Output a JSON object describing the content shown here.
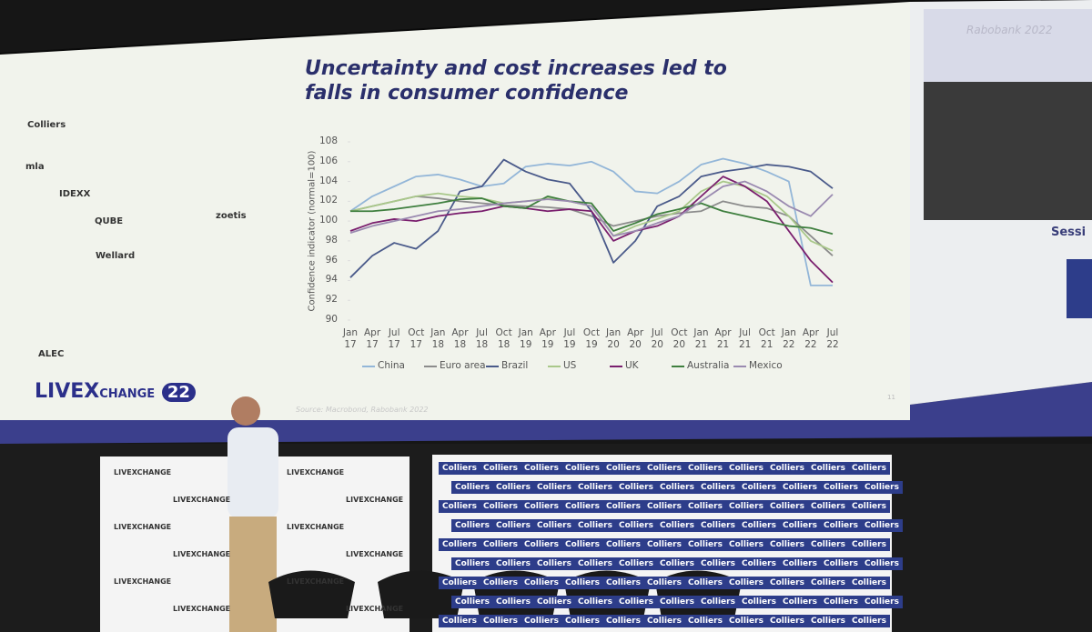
{
  "chart_data": {
    "type": "line",
    "title": "Uncertainty  and cost increases led to falls in consumer confidence",
    "y_label": "Confidence indicator (normal=100)",
    "categories": [
      "Jan 17",
      "Apr 17",
      "Jul 17",
      "Oct 17",
      "Jan 18",
      "Apr 18",
      "Jul 18",
      "Oct 18",
      "Jan 19",
      "Apr 19",
      "Jul 19",
      "Oct 19",
      "Jan 20",
      "Apr 20",
      "Jul 20",
      "Oct 20",
      "Jan 21",
      "Apr 21",
      "Jul 21",
      "Oct 21",
      "Jan 22",
      "Apr 22",
      "Jul 22"
    ],
    "ylim": [
      90,
      108
    ],
    "yticks": [
      90,
      92,
      94,
      96,
      98,
      100,
      102,
      104,
      106,
      108
    ],
    "grid": false,
    "legend": "bottom",
    "series": [
      {
        "name": "China",
        "color": "#93b6d8",
        "values": [
          101,
          102.5,
          103.5,
          104.5,
          104.7,
          104.2,
          103.5,
          103.8,
          105.5,
          105.8,
          105.6,
          106,
          105,
          103,
          102.8,
          104,
          105.7,
          106.3,
          105.8,
          105,
          104,
          93.5,
          93.5
        ]
      },
      {
        "name": "Euro area",
        "color": "#8c8c8c",
        "values": [
          101,
          101.5,
          102,
          102.5,
          102.3,
          102,
          101.8,
          101.6,
          101.5,
          101.4,
          101.2,
          100.5,
          99.5,
          100,
          100.5,
          100.8,
          101,
          102,
          101.5,
          101.3,
          100.5,
          98.5,
          96.5
        ]
      },
      {
        "name": "Brazil",
        "color": "#4a5a8a",
        "values": [
          94.3,
          96.5,
          97.8,
          97.2,
          99,
          103,
          103.5,
          106.2,
          105,
          104.2,
          103.8,
          101,
          95.8,
          98,
          101.5,
          102.5,
          104.5,
          105,
          105.3,
          105.7,
          105.5,
          105,
          103.3
        ]
      },
      {
        "name": "US",
        "color": "#a9c88a",
        "values": [
          101,
          101.5,
          102,
          102.5,
          102.8,
          102.5,
          102.3,
          101.8,
          102,
          102.3,
          102,
          101.5,
          98.5,
          99.5,
          100.2,
          101,
          103,
          104,
          103.5,
          102.5,
          100.5,
          98,
          97
        ]
      },
      {
        "name": "UK",
        "color": "#7a1f6e",
        "values": [
          99,
          99.8,
          100.2,
          100,
          100.5,
          100.8,
          101,
          101.5,
          101.3,
          101,
          101.2,
          101,
          98,
          99,
          99.5,
          100.5,
          102.5,
          104.5,
          103.5,
          102,
          99,
          96,
          93.8
        ]
      },
      {
        "name": "Australia",
        "color": "#3f7f3f",
        "values": [
          101,
          101,
          101.2,
          101.5,
          101.8,
          102.2,
          102.3,
          101.5,
          101.3,
          102.5,
          102,
          101.8,
          99,
          99.8,
          100.7,
          101.2,
          101.8,
          101,
          100.5,
          100,
          99.5,
          99.3,
          98.7
        ]
      },
      {
        "name": "Mexico",
        "color": "#9a8ab0",
        "values": [
          98.8,
          99.5,
          100,
          100.5,
          101,
          101.2,
          101.5,
          101.8,
          102,
          102.2,
          102,
          101.5,
          98.5,
          99,
          99.8,
          100.5,
          102,
          103.5,
          104,
          103,
          101.5,
          100.5,
          102.7
        ]
      }
    ]
  },
  "slide": {
    "source": "Source: Macrobond, Rabobank 2022",
    "page": "11",
    "logos": [
      "Colliers",
      "mla",
      "IDEXX",
      "QUBE",
      "zoetis",
      "Wellard",
      "ALEC"
    ]
  },
  "event_logo": {
    "name": "LIVEX",
    "suffix": "CHANGE",
    "year": "22"
  },
  "video": {
    "credit": "Rabobank 2022",
    "caption": "Sessi"
  },
  "backdrop": {
    "sponsor": "Colliers",
    "event": "LIVEXCHANGE"
  }
}
